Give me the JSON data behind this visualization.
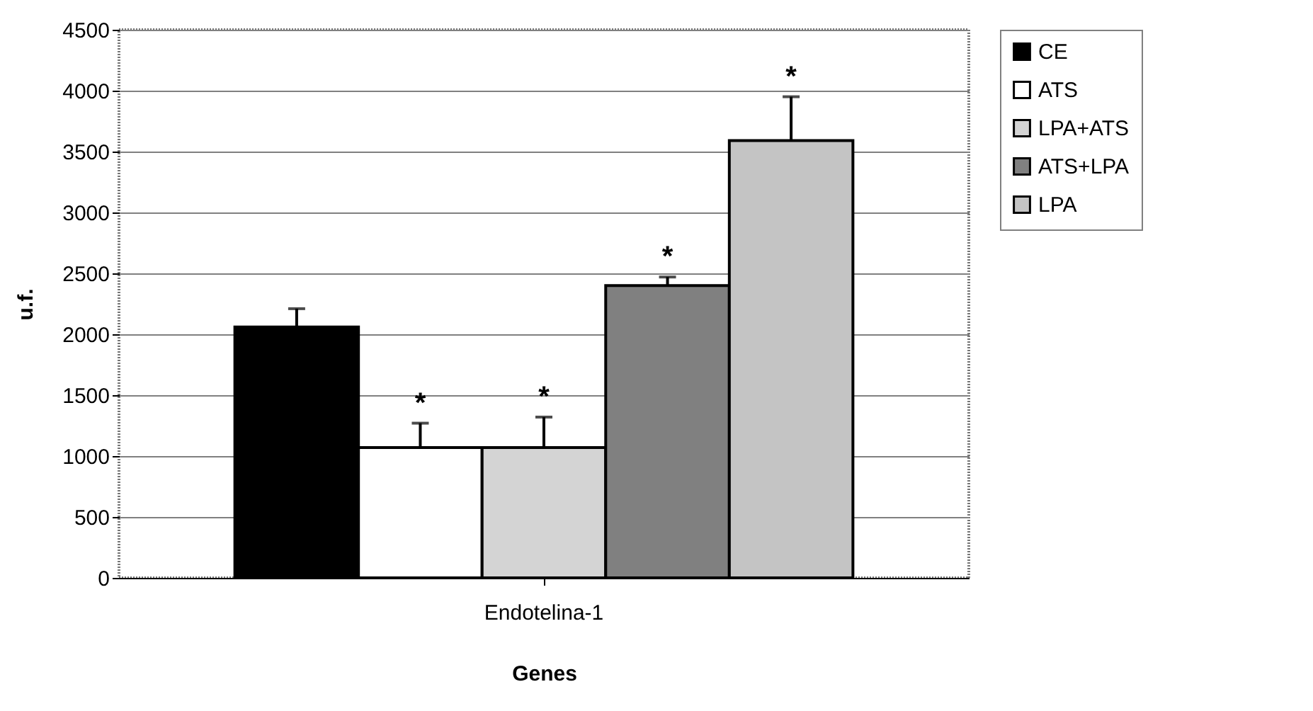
{
  "chart_data": {
    "type": "bar",
    "categories": [
      "Endotelina-1"
    ],
    "xlabel": "Genes",
    "ylabel": "u.f.",
    "series": [
      {
        "name": "CE",
        "color": "#000000",
        "values": [
          2060
        ],
        "errors": [
          150
        ],
        "value_labels": [
          null
        ]
      },
      {
        "name": "ATS",
        "color": "#ffffff",
        "values": [
          1070
        ],
        "errors": [
          200
        ],
        "value_labels": [
          "*"
        ]
      },
      {
        "name": "LPA+ATS",
        "color": "#d4d4d4",
        "values": [
          1070
        ],
        "errors": [
          250
        ],
        "value_labels": [
          "*"
        ]
      },
      {
        "name": "ATS+LPA",
        "color": "#808080",
        "values": [
          2400
        ],
        "errors": [
          70
        ],
        "value_labels": [
          "*"
        ]
      },
      {
        "name": "LPA",
        "color": "#c4c4c4",
        "values": [
          3590
        ],
        "errors": [
          360
        ],
        "value_labels": [
          "*"
        ]
      }
    ],
    "ylim": [
      0,
      4500
    ],
    "yticks": [
      0,
      500,
      1000,
      1500,
      2000,
      2500,
      3000,
      3500,
      4000,
      4500
    ],
    "grid": "y",
    "legend": "right"
  }
}
